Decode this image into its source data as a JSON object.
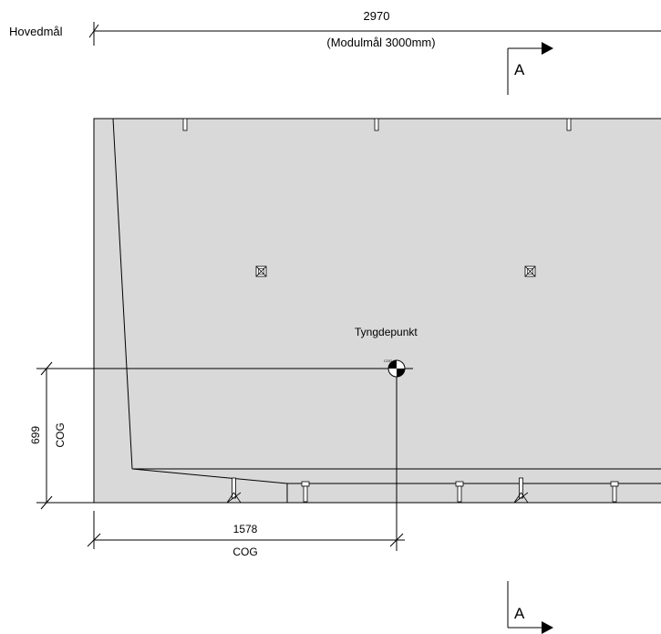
{
  "drawing": {
    "colors": {
      "panel_fill": "#d9d9d9",
      "line": "#000000"
    },
    "top_dimension": {
      "row_label": "Hovedmål",
      "value": "2970",
      "note": "(Modulmål 3000mm)"
    },
    "section_marks": {
      "top": "A",
      "bottom": "A"
    },
    "center_of_gravity": {
      "label": "Tyngdepunkt",
      "symbol_tag": "COG",
      "vertical": {
        "value": "699",
        "label": "COG"
      },
      "horizontal": {
        "value": "1578",
        "label": "COG"
      }
    }
  }
}
